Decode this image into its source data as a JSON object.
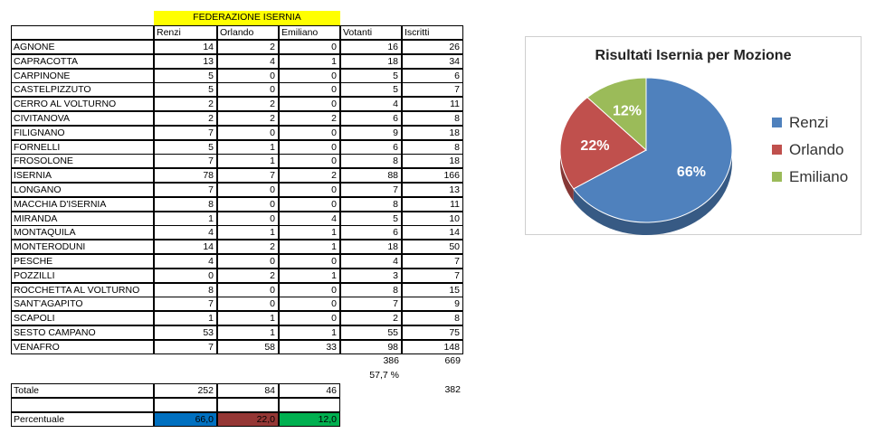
{
  "sheet": {
    "title": "FEDERAZIONE ISERNIA",
    "headers": [
      "Renzi",
      "Orlando",
      "Emiliano",
      "Votanti",
      "Iscritti"
    ],
    "rows": [
      {
        "name": "AGNONE",
        "v": [
          14,
          2,
          0,
          16,
          26
        ]
      },
      {
        "name": "CAPRACOTTA",
        "v": [
          13,
          4,
          1,
          18,
          34
        ]
      },
      {
        "name": "CARPINONE",
        "v": [
          5,
          0,
          0,
          5,
          6
        ]
      },
      {
        "name": "CASTELPIZZUTO",
        "v": [
          5,
          0,
          0,
          5,
          7
        ]
      },
      {
        "name": "CERRO AL VOLTURNO",
        "v": [
          2,
          2,
          0,
          4,
          11
        ]
      },
      {
        "name": "CIVITANOVA",
        "v": [
          2,
          2,
          2,
          6,
          8
        ]
      },
      {
        "name": "FILIGNANO",
        "v": [
          7,
          0,
          0,
          9,
          18
        ]
      },
      {
        "name": "FORNELLI",
        "v": [
          5,
          1,
          0,
          6,
          8
        ]
      },
      {
        "name": "FROSOLONE",
        "v": [
          7,
          1,
          0,
          8,
          18
        ]
      },
      {
        "name": "ISERNIA",
        "v": [
          78,
          7,
          2,
          88,
          166
        ]
      },
      {
        "name": "LONGANO",
        "v": [
          7,
          0,
          0,
          7,
          13
        ]
      },
      {
        "name": "MACCHIA D'ISERNIA",
        "v": [
          8,
          0,
          0,
          8,
          11
        ]
      },
      {
        "name": "MIRANDA",
        "v": [
          1,
          0,
          4,
          5,
          10
        ]
      },
      {
        "name": "MONTAQUILA",
        "v": [
          4,
          1,
          1,
          6,
          14
        ]
      },
      {
        "name": "MONTERODUNI",
        "v": [
          14,
          2,
          1,
          18,
          50
        ]
      },
      {
        "name": "PESCHE",
        "v": [
          4,
          0,
          0,
          4,
          7
        ]
      },
      {
        "name": "POZZILLI",
        "v": [
          0,
          2,
          1,
          3,
          7
        ]
      },
      {
        "name": "ROCCHETTA AL VOLTURNO",
        "v": [
          8,
          0,
          0,
          8,
          15
        ]
      },
      {
        "name": "SANT'AGAPITO",
        "v": [
          7,
          0,
          0,
          7,
          9
        ]
      },
      {
        "name": "SCAPOLI",
        "v": [
          1,
          1,
          0,
          2,
          8
        ]
      },
      {
        "name": "SESTO CAMPANO",
        "v": [
          53,
          1,
          1,
          55,
          75
        ]
      },
      {
        "name": "VENAFRO",
        "v": [
          7,
          58,
          33,
          98,
          148
        ]
      }
    ],
    "sum_votanti": "386",
    "sum_iscritti": "669",
    "affluenza": "57,7 %",
    "totale_label": "Totale",
    "totale": [
      "252",
      "84",
      "46"
    ],
    "totale_votanti": "382",
    "percentuale_label": "Percentuale",
    "percentuale": [
      "66,0",
      "22,0",
      "12,0"
    ],
    "percentuale_colors": [
      "#0070c0",
      "#953735",
      "#00b050"
    ]
  },
  "chart_data": {
    "type": "pie",
    "title": "Risultati Isernia per Mozione",
    "labels": [
      "Renzi",
      "Orlando",
      "Emiliano"
    ],
    "values": [
      66,
      22,
      12
    ],
    "data_labels": [
      "66%",
      "22%",
      "12%"
    ],
    "colors": [
      "#4f81bd",
      "#c0504d",
      "#9bbb59"
    ],
    "legend_position": "right"
  }
}
